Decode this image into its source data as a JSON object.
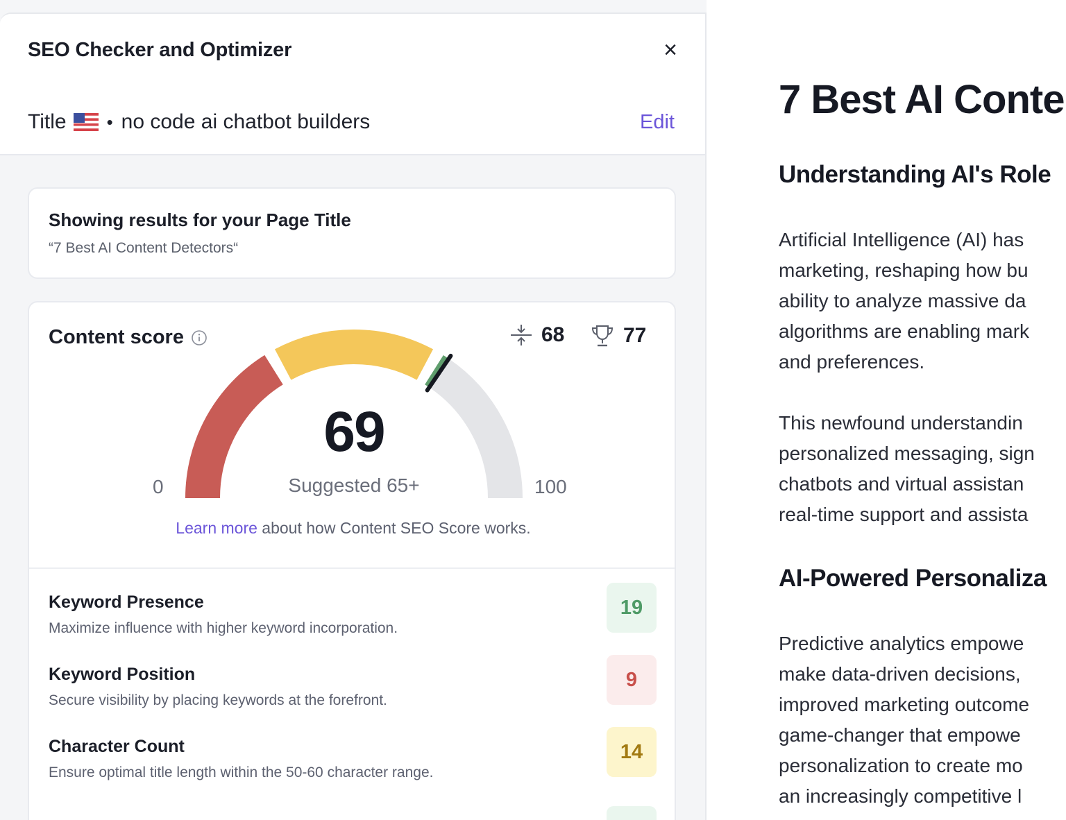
{
  "panel": {
    "title": "SEO Checker and Optimizer",
    "close_symbol": "×",
    "title_label": "Title",
    "bullet": "•",
    "keyword": "no code ai chatbot builders",
    "edit_label": "Edit",
    "flag_icon": "us-flag-icon"
  },
  "results": {
    "heading": "Showing results for your Page Title",
    "page_title": "“7 Best AI Content Detectors“"
  },
  "score": {
    "label": "Content score",
    "value": "69",
    "value_num": 69,
    "suggested": "Suggested 65+",
    "min": "0",
    "max": "100",
    "avg_score": "68",
    "top_score": "77",
    "learn_link": "Learn more",
    "learn_text": " about how Content SEO Score works.",
    "colors": {
      "red": "#c85c56",
      "yellow": "#f4c75a",
      "green": "#5f9e6d",
      "track": "#e4e5e8"
    }
  },
  "metrics": [
    {
      "title": "Keyword Presence",
      "desc": "Maximize influence with higher keyword incorporation.",
      "score": "19",
      "status": "green"
    },
    {
      "title": "Keyword Position",
      "desc": "Secure visibility by placing keywords at the forefront.",
      "score": "9",
      "status": "red"
    },
    {
      "title": "Character Count",
      "desc": "Ensure optimal title length within the 50-60 character range.",
      "score": "14",
      "status": "yellow"
    }
  ],
  "article": {
    "h1": "7 Best AI Conte",
    "h2_1": "Understanding AI's Role",
    "p1": [
      "Artificial Intelligence (AI) has",
      "marketing, reshaping how bu",
      "ability to analyze massive da",
      "algorithms are enabling mark",
      "and preferences."
    ],
    "p2": [
      "This newfound understandin",
      "personalized messaging, sign",
      "chatbots and virtual assistan",
      "real-time support and assista"
    ],
    "h2_2": "AI-Powered Personaliza",
    "p3": [
      "Predictive analytics empowe",
      "make data-driven decisions,",
      "improved marketing outcome",
      "game-changer that empowe",
      "personalization to create mo",
      "an increasingly competitive l"
    ]
  }
}
